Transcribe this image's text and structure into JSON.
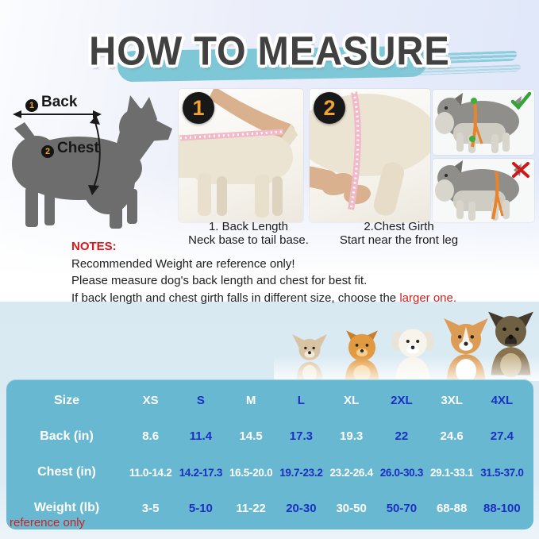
{
  "title": "HOW TO MEASURE",
  "diagram": {
    "label1_num": "1",
    "label1": "Back",
    "label2_num": "2",
    "label2": "Chest"
  },
  "steps": [
    {
      "badge": "1",
      "caption_line1": "1. Back Length",
      "caption_line2": "Neck base to tail base."
    },
    {
      "badge": "2",
      "caption_line1": "2.Chest Girth",
      "caption_line2": "Start near the front leg"
    }
  ],
  "guide_icons": {
    "correct": "green-check",
    "wrong": "red-x"
  },
  "notes": {
    "heading": "NOTES:",
    "lines": [
      "Recommended Weight are reference only!",
      "Please measure dog's back length and chest for best fit."
    ],
    "line3_prefix": "If back length and chest girth falls in different size, choose the ",
    "line3_highlight": "larger one."
  },
  "breeds": [
    "chihuahua",
    "pomeranian",
    "bichon-frise",
    "corgi",
    "german-shepherd"
  ],
  "size_chart": {
    "type": "table",
    "columns": [
      "Size",
      "XS",
      "S",
      "M",
      "L",
      "XL",
      "2XL",
      "3XL",
      "4XL"
    ],
    "rows": [
      {
        "label": "Back (in)",
        "values": [
          "8.6",
          "11.4",
          "14.5",
          "17.3",
          "19.3",
          "22",
          "24.6",
          "27.4"
        ]
      },
      {
        "label": "Chest (in)",
        "values": [
          "11.0-14.2",
          "14.2-17.3",
          "16.5-20.0",
          "19.7-23.2",
          "23.2-26.4",
          "26.0-30.3",
          "29.1-33.1",
          "31.5-37.0"
        ]
      },
      {
        "label": "Weight (lb)",
        "values": [
          "3-5",
          "5-10",
          "11-22",
          "20-30",
          "30-50",
          "50-70",
          "68-88",
          "88-100"
        ]
      }
    ],
    "footnote": "reference only"
  },
  "colors": {
    "brush_teal": "#7ec7d7",
    "table_bg": "#68b8d1",
    "alt_column_blue": "#1b2fc4",
    "accent_red": "#e01616",
    "badge_gold": "#f0a32e",
    "silhouette_gray": "#6d6d6d"
  }
}
